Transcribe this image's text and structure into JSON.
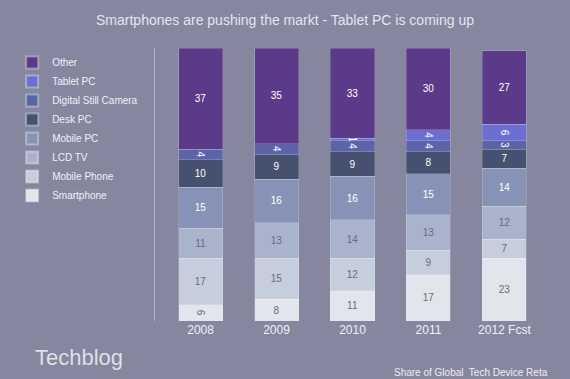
{
  "chart_data": {
    "type": "bar",
    "title": "Smartphones are pushing the markt - Tablet PC is coming up",
    "categories": [
      "2008",
      "2009",
      "2010",
      "2011",
      "2012 Fcst"
    ],
    "series": [
      {
        "name": "Smartphone",
        "color": "#e2e5ec",
        "values": [
          6,
          8,
          11,
          17,
          23
        ]
      },
      {
        "name": "Mobile Phone",
        "color": "#c6cddd",
        "values": [
          17,
          15,
          12,
          9,
          7
        ]
      },
      {
        "name": "LCD TV",
        "color": "#a9b3cb",
        "values": [
          11,
          13,
          14,
          13,
          12
        ]
      },
      {
        "name": "Mobile PC",
        "color": "#8793b6",
        "values": [
          15,
          16,
          16,
          15,
          14
        ]
      },
      {
        "name": "Desk PC",
        "color": "#46506f",
        "values": [
          10,
          9,
          9,
          8,
          7
        ]
      },
      {
        "name": "Digital Still Camera",
        "color": "#5a64a6",
        "values": [
          4,
          4,
          4,
          4,
          3
        ]
      },
      {
        "name": "Tablet PC",
        "color": "#6c6fd0",
        "values": [
          null,
          null,
          1,
          4,
          6
        ]
      },
      {
        "name": "Other",
        "color": "#5b3a8a",
        "values": [
          37,
          35,
          33,
          30,
          27
        ]
      }
    ],
    "stacked": true,
    "data_labels": true,
    "legend": "left",
    "tick_labels": "x",
    "grid": false,
    "ylim": [
      0,
      100
    ],
    "annotations": [
      "Share of Global  Tech Device Reta",
      "Techblog"
    ]
  }
}
